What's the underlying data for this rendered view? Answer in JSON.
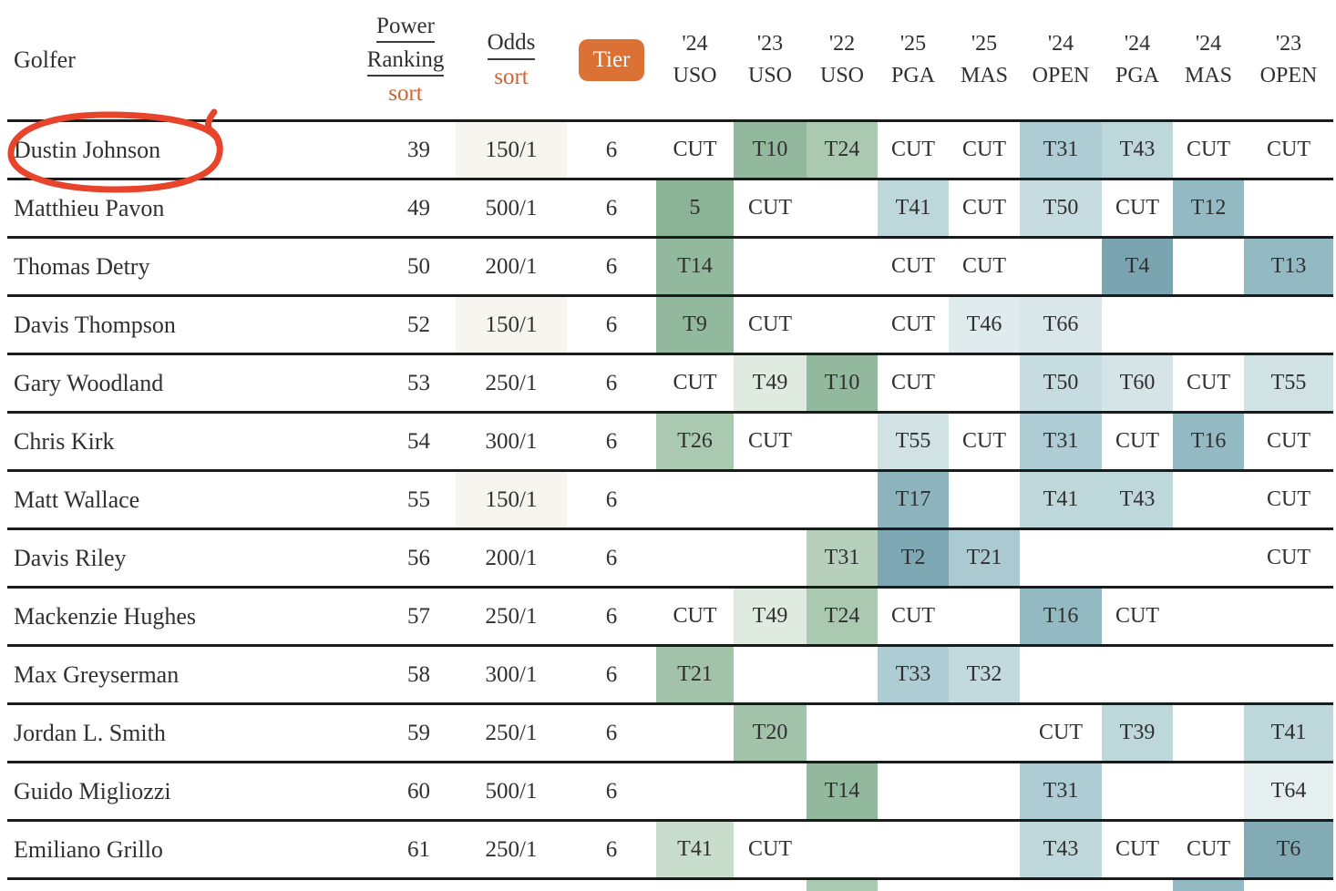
{
  "header": {
    "golfer": "Golfer",
    "power_ranking": [
      "Power",
      "Ranking"
    ],
    "odds": "Odds",
    "sort": "sort",
    "tier": "Tier"
  },
  "event_columns": [
    {
      "year": "'24",
      "event": "USO"
    },
    {
      "year": "'23",
      "event": "USO"
    },
    {
      "year": "'22",
      "event": "USO"
    },
    {
      "year": "'25",
      "event": "PGA"
    },
    {
      "year": "'25",
      "event": "MAS"
    },
    {
      "year": "'24",
      "event": "OPEN"
    },
    {
      "year": "'24",
      "event": "PGA"
    },
    {
      "year": "'24",
      "event": "MAS"
    },
    {
      "year": "'23",
      "event": "OPEN"
    }
  ],
  "rows": [
    {
      "golfer": "Dustin Johnson",
      "power_ranking": "39",
      "odds": "150/1",
      "odds_bg": "#f6f5ef",
      "tier": "6",
      "annotated": true,
      "results": [
        {
          "t": "CUT"
        },
        {
          "t": "T10",
          "c": "#92b99d"
        },
        {
          "t": "T24",
          "c": "#abc9b1"
        },
        {
          "t": "CUT"
        },
        {
          "t": "CUT"
        },
        {
          "t": "T31",
          "c": "#aeccd3"
        },
        {
          "t": "T43",
          "c": "#bed7db"
        },
        {
          "t": "CUT"
        },
        {
          "t": "CUT"
        }
      ]
    },
    {
      "golfer": "Matthieu Pavon",
      "power_ranking": "49",
      "odds": "500/1",
      "odds_bg": "",
      "tier": "6",
      "results": [
        {
          "t": "5",
          "c": "#8bb496"
        },
        {
          "t": "CUT"
        },
        null,
        {
          "t": "T41",
          "c": "#bed7db"
        },
        {
          "t": "CUT"
        },
        {
          "t": "T50",
          "c": "#c6dce0"
        },
        {
          "t": "CUT"
        },
        {
          "t": "T12",
          "c": "#93b9c2"
        },
        null
      ]
    },
    {
      "golfer": "Thomas Detry",
      "power_ranking": "50",
      "odds": "200/1",
      "odds_bg": "",
      "tier": "6",
      "results": [
        {
          "t": "T14",
          "c": "#92b99d"
        },
        null,
        null,
        {
          "t": "CUT"
        },
        {
          "t": "CUT"
        },
        null,
        {
          "t": "T4",
          "c": "#79a4b0"
        },
        null,
        {
          "t": "T13",
          "c": "#93b9c2"
        }
      ]
    },
    {
      "golfer": "Davis Thompson",
      "power_ranking": "52",
      "odds": "150/1",
      "odds_bg": "#f6f5ef",
      "tier": "6",
      "results": [
        {
          "t": "T9",
          "c": "#92b99d"
        },
        {
          "t": "CUT"
        },
        null,
        {
          "t": "CUT"
        },
        {
          "t": "T46",
          "c": "#e0ebed"
        },
        {
          "t": "T66",
          "c": "#dae7ea"
        },
        null,
        null,
        null
      ]
    },
    {
      "golfer": "Gary Woodland",
      "power_ranking": "53",
      "odds": "250/1",
      "odds_bg": "",
      "tier": "6",
      "results": [
        {
          "t": "CUT"
        },
        {
          "t": "T49",
          "c": "#dfeae0"
        },
        {
          "t": "T10",
          "c": "#92b99d"
        },
        {
          "t": "CUT"
        },
        null,
        {
          "t": "T50",
          "c": "#c6dce0"
        },
        {
          "t": "T60",
          "c": "#d5e4e7"
        },
        {
          "t": "CUT"
        },
        {
          "t": "T55",
          "c": "#d1e2e5"
        }
      ]
    },
    {
      "golfer": "Chris Kirk",
      "power_ranking": "54",
      "odds": "300/1",
      "odds_bg": "",
      "tier": "6",
      "results": [
        {
          "t": "T26",
          "c": "#abc9b1"
        },
        {
          "t": "CUT"
        },
        null,
        {
          "t": "T55",
          "c": "#d1e2e5"
        },
        {
          "t": "CUT"
        },
        {
          "t": "T31",
          "c": "#aeccd3"
        },
        {
          "t": "CUT"
        },
        {
          "t": "T16",
          "c": "#93b9c2"
        },
        {
          "t": "CUT"
        }
      ]
    },
    {
      "golfer": "Matt Wallace",
      "power_ranking": "55",
      "odds": "150/1",
      "odds_bg": "#f6f5ef",
      "tier": "6",
      "results": [
        null,
        null,
        null,
        {
          "t": "T17",
          "c": "#8db4bd"
        },
        null,
        {
          "t": "T41",
          "c": "#bed7db"
        },
        {
          "t": "T43",
          "c": "#bed7db"
        },
        null,
        {
          "t": "CUT"
        }
      ]
    },
    {
      "golfer": "Davis Riley",
      "power_ranking": "56",
      "odds": "200/1",
      "odds_bg": "",
      "tier": "6",
      "results": [
        null,
        null,
        {
          "t": "T31",
          "c": "#b6d0bc"
        },
        {
          "t": "T2",
          "c": "#7da7b3"
        },
        {
          "t": "T21",
          "c": "#aac9d1"
        },
        null,
        null,
        null,
        {
          "t": "CUT"
        }
      ]
    },
    {
      "golfer": "Mackenzie Hughes",
      "power_ranking": "57",
      "odds": "250/1",
      "odds_bg": "",
      "tier": "6",
      "results": [
        {
          "t": "CUT"
        },
        {
          "t": "T49",
          "c": "#dfeae0"
        },
        {
          "t": "T24",
          "c": "#abc9b1"
        },
        {
          "t": "CUT"
        },
        null,
        {
          "t": "T16",
          "c": "#93b9c2"
        },
        {
          "t": "CUT"
        },
        null,
        null
      ]
    },
    {
      "golfer": "Max Greyserman",
      "power_ranking": "58",
      "odds": "300/1",
      "odds_bg": "",
      "tier": "6",
      "results": [
        {
          "t": "T21",
          "c": "#a2c3aa"
        },
        null,
        null,
        {
          "t": "T33",
          "c": "#aeccd3"
        },
        {
          "t": "T32",
          "c": "#c2d9dd"
        },
        null,
        null,
        null,
        null
      ]
    },
    {
      "golfer": "Jordan L. Smith",
      "power_ranking": "59",
      "odds": "250/1",
      "odds_bg": "",
      "tier": "6",
      "results": [
        null,
        {
          "t": "T20",
          "c": "#a2c3aa"
        },
        null,
        null,
        null,
        {
          "t": "CUT"
        },
        {
          "t": "T39",
          "c": "#bed7db"
        },
        null,
        {
          "t": "T41",
          "c": "#bed7db"
        }
      ]
    },
    {
      "golfer": "Guido Migliozzi",
      "power_ranking": "60",
      "odds": "500/1",
      "odds_bg": "",
      "tier": "6",
      "results": [
        null,
        null,
        {
          "t": "T14",
          "c": "#92b99d"
        },
        null,
        null,
        {
          "t": "T31",
          "c": "#aeccd3"
        },
        null,
        null,
        {
          "t": "T64",
          "c": "#e5eff0"
        }
      ]
    },
    {
      "golfer": "Emiliano Grillo",
      "power_ranking": "61",
      "odds": "250/1",
      "odds_bg": "",
      "tier": "6",
      "results": [
        {
          "t": "T41",
          "c": "#c8ddcc"
        },
        {
          "t": "CUT"
        },
        null,
        null,
        null,
        {
          "t": "T43",
          "c": "#bed7db"
        },
        {
          "t": "CUT"
        },
        {
          "t": "CUT"
        },
        {
          "t": "T6",
          "c": "#82abb6"
        }
      ]
    }
  ],
  "partial_row": {
    "results": [
      null,
      null,
      {
        "t": "",
        "c": "#abc9b1"
      },
      null,
      null,
      null,
      null,
      {
        "t": "",
        "c": "#93b9c2"
      },
      null
    ]
  },
  "annotation": {
    "type": "hand-drawn-circle",
    "target": "Dustin Johnson",
    "color": "#e8432b"
  },
  "colors": {
    "accent_orange": "#d2622c",
    "tier_button_bg": "#db7134",
    "row_line": "#1b1b1b",
    "odds_highlight_bg": "#f6f5ef",
    "text": "#303030"
  }
}
